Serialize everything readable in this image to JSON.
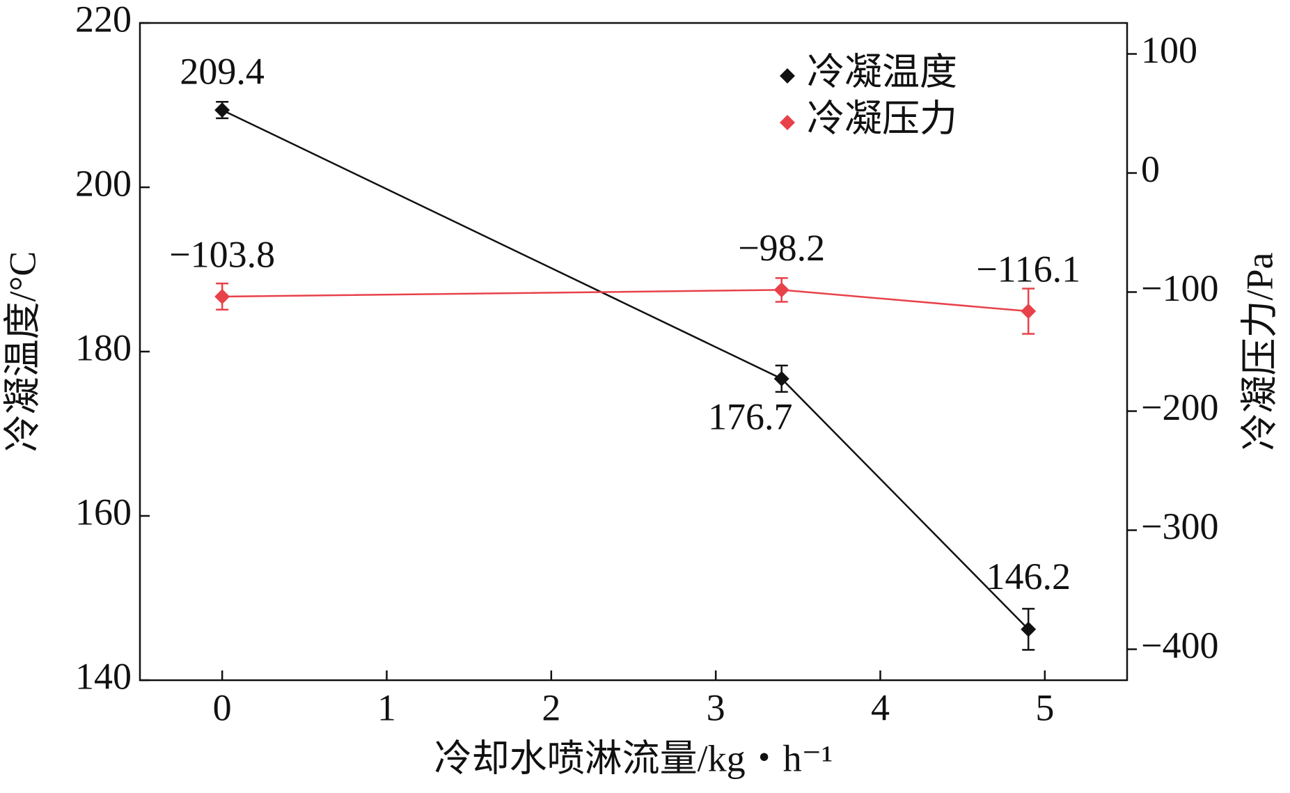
{
  "chart_data": {
    "type": "line",
    "x_label": "冷却水喷淋流量/kg・h⁻¹",
    "y_label": "冷凝温度/°C",
    "y2_label": "冷凝压力/Pa",
    "x": [
      0,
      3.4,
      4.9
    ],
    "xlim": [
      -0.5,
      5.5
    ],
    "xticks": [
      0,
      1,
      2,
      3,
      4,
      5
    ],
    "ylim": [
      140,
      220
    ],
    "yticks": [
      140,
      160,
      180,
      200,
      220
    ],
    "y2lim": [
      -426,
      126
    ],
    "y2ticks": [
      {
        "value": -400,
        "label": "−400"
      },
      {
        "value": -300,
        "label": "−300"
      },
      {
        "value": -200,
        "label": "−200"
      },
      {
        "value": -100,
        "label": "−100"
      },
      0,
      100
    ],
    "legend": "upper right",
    "series": [
      {
        "name": "冷凝温度",
        "color": "#111111",
        "values": [
          209.4,
          176.7,
          146.2
        ],
        "errors": [
          1,
          1.6,
          2.5
        ]
      },
      {
        "name": "冷凝压力",
        "color": "#e8414a",
        "axis": "y2",
        "values": [
          -103.8,
          -98.2,
          -116.1
        ],
        "value_labels": [
          "−103.8",
          "−98.2",
          "−116.1"
        ],
        "errors": [
          11,
          10,
          19
        ]
      }
    ]
  }
}
